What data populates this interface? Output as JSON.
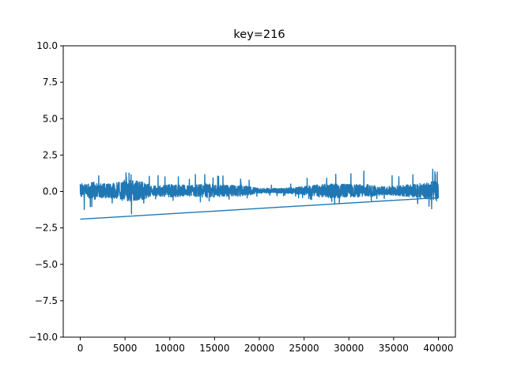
{
  "chart_data": {
    "type": "line",
    "title": "key=216",
    "xlabel": "",
    "ylabel": "",
    "xlim": [
      -1900,
      41900
    ],
    "ylim": [
      -10.0,
      10.0
    ],
    "xticks": [
      0,
      5000,
      10000,
      15000,
      20000,
      25000,
      30000,
      35000,
      40000
    ],
    "xtick_labels": [
      "0",
      "5000",
      "10000",
      "15000",
      "20000",
      "25000",
      "30000",
      "35000",
      "40000"
    ],
    "yticks": [
      -10.0,
      -7.5,
      -5.0,
      -2.5,
      0.0,
      2.5,
      5.0,
      7.5,
      10.0
    ],
    "ytick_labels": [
      "−10.0",
      "−7.5",
      "−5.0",
      "−2.5",
      "0.0",
      "2.5",
      "5.0",
      "7.5",
      "10.0"
    ],
    "grid": false,
    "series": [
      {
        "color": "#1f77b4",
        "x": [
          0,
          2000,
          4000,
          6000,
          8000,
          10000,
          12000,
          14000,
          16000,
          18000,
          20000,
          22000,
          24000,
          26000,
          28000,
          30000,
          32000,
          34000,
          36000,
          38000,
          40000
        ],
        "upper": [
          0.7,
          1.2,
          1.5,
          1.3,
          1.2,
          1.2,
          1.1,
          1.3,
          1.1,
          1.0,
          0.55,
          0.45,
          0.8,
          1.2,
          1.3,
          1.6,
          1.5,
          1.2,
          1.4,
          1.4,
          1.6
        ],
        "lower": [
          -1.9,
          -0.9,
          -1.0,
          -1.7,
          -0.6,
          -0.8,
          -0.7,
          -0.9,
          -0.7,
          -0.7,
          -0.3,
          -0.3,
          -0.4,
          -0.7,
          -0.9,
          -0.8,
          -0.8,
          -0.5,
          -0.7,
          -0.9,
          -1.4
        ]
      }
    ]
  }
}
